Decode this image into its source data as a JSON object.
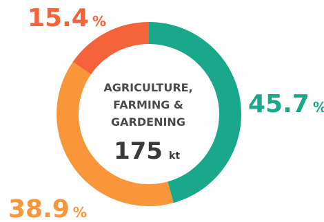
{
  "chart_data": {
    "type": "pie",
    "style": "donut",
    "title_lines": [
      "AGRICULTURE,",
      "FARMING &",
      "GARDENING"
    ],
    "total": "175",
    "unit": "kt",
    "slices": [
      {
        "value": 45.7,
        "label": "45.7",
        "suffix": "%",
        "color": "#1aa88a"
      },
      {
        "value": 38.9,
        "label": "38.9",
        "suffix": "%",
        "color": "#f9963a"
      },
      {
        "value": 15.4,
        "label": "15.4",
        "suffix": "%",
        "color": "#f4633a"
      }
    ]
  }
}
